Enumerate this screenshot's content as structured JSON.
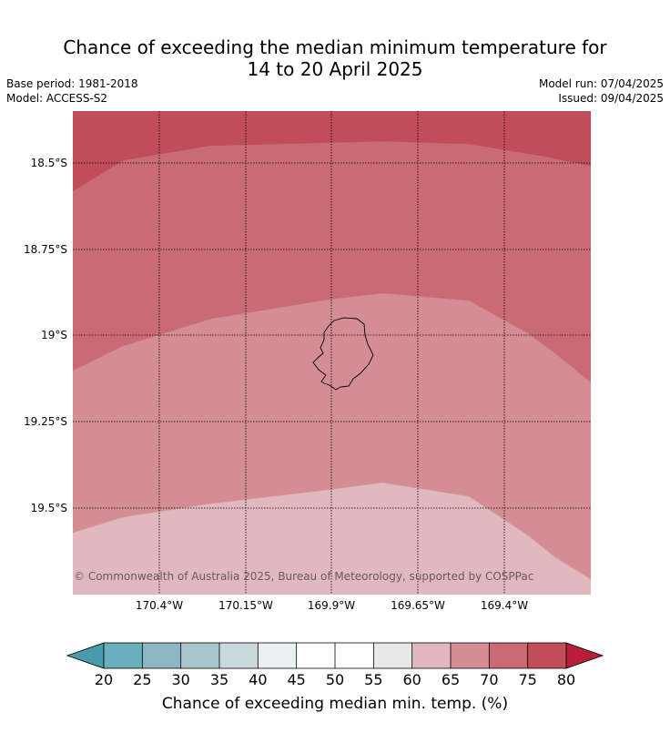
{
  "title": {
    "line1": "Chance of exceeding the median minimum temperature for",
    "line2": "14 to 20 April 2025"
  },
  "meta": {
    "base_period": "Base period: 1981-2018",
    "model": "Model: ACCESS-S2",
    "model_run": "Model run: 07/04/2025",
    "issued": "Issued: 09/04/2025"
  },
  "map": {
    "region": "Niue",
    "lat_ticks": [
      "18.5°S",
      "18.75°S",
      "19°S",
      "19.25°S",
      "19.5°S"
    ],
    "lon_ticks": [
      "170.4°W",
      "170.15°W",
      "169.9°W",
      "169.65°W",
      "169.4°W"
    ],
    "credit": "© Commonwealth of Australia 2025, Bureau of Meteorology, supported by COSPPac",
    "bands": [
      {
        "range": "60-65",
        "color": "#e0b8bd"
      },
      {
        "range": "65-70",
        "color": "#d58d95"
      },
      {
        "range": "70-75",
        "color": "#ca6a75"
      },
      {
        "range": "75-80",
        "color": "#c14c5a"
      }
    ]
  },
  "colorbar": {
    "title": "Chance of exceeding median min. temp. (%)",
    "ticks": [
      "20",
      "25",
      "30",
      "35",
      "40",
      "45",
      "50",
      "55",
      "60",
      "65",
      "70",
      "75",
      "80"
    ],
    "low_extend_color": "#4a9aac",
    "high_extend_color": "#b81e3c",
    "colors": [
      "#6aaebe",
      "#8cb6c2",
      "#a8c6cc",
      "#c8d8dc",
      "#e8f0f1",
      "#ffffff",
      "#ffffff",
      "#e8e8e8",
      "#e0b8bd",
      "#d58d95",
      "#ca6a75",
      "#c14c5a"
    ]
  }
}
